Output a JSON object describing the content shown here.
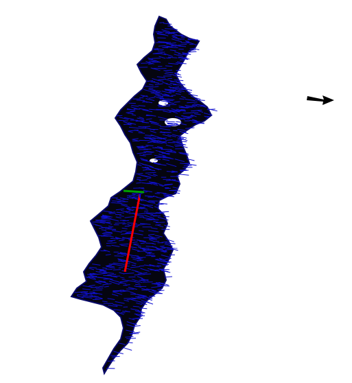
{
  "viewer": {
    "background": "#ffffff",
    "point_cloud": {
      "fill_color": "#000000",
      "normal_color": "#1010d0"
    },
    "axes": {
      "x_axis_color": "#ff0000",
      "y_axis_color": "#00a000",
      "z_axis_color": "#0000ff"
    },
    "direction_indicator": {
      "icon": "arrow-right-icon",
      "color": "#000000"
    }
  }
}
